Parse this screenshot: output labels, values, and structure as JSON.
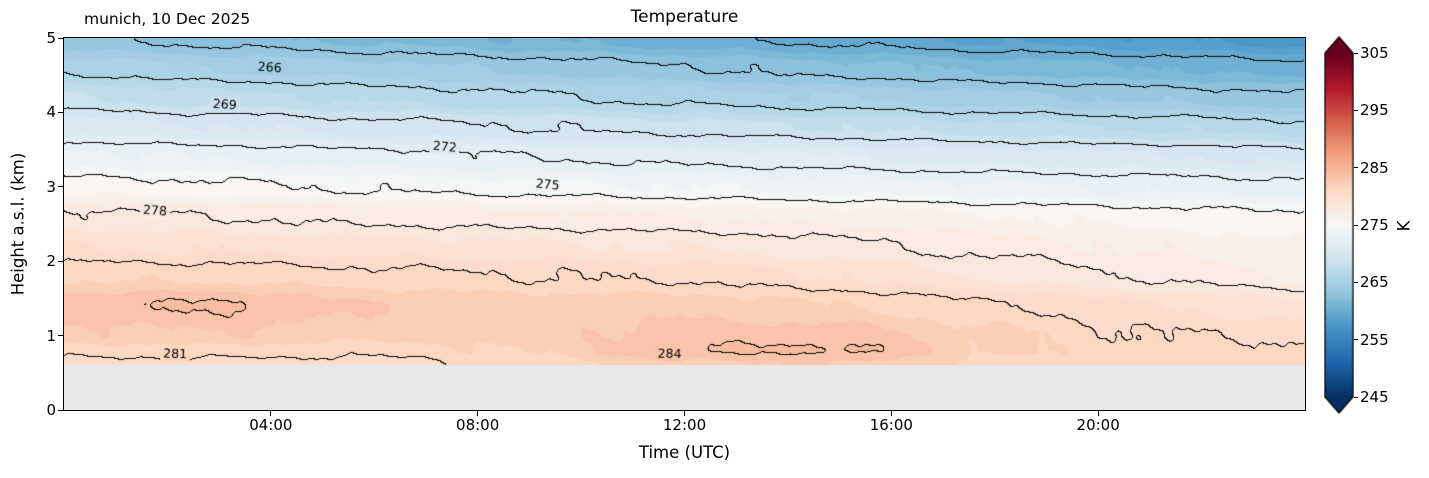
{
  "chart_data": {
    "type": "heatmap",
    "title": "Temperature",
    "annotation": "munich, 10 Dec 2025",
    "xlabel": "Time (UTC)",
    "ylabel": "Height a.s.l. (km)",
    "x_range_hours": [
      0,
      24
    ],
    "y_range_km": [
      0,
      5
    ],
    "x_ticks": [
      {
        "value": 4,
        "label": "04:00"
      },
      {
        "value": 8,
        "label": "08:00"
      },
      {
        "value": 12,
        "label": "12:00"
      },
      {
        "value": 16,
        "label": "16:00"
      },
      {
        "value": 20,
        "label": "20:00"
      }
    ],
    "y_ticks": [
      0,
      1,
      2,
      3,
      4,
      5
    ],
    "times_hours": [
      0,
      3,
      6,
      9,
      12,
      15,
      18,
      21,
      24
    ],
    "heights_km": [
      0.6,
      0.8,
      1.0,
      1.4,
      1.8,
      2.2,
      2.6,
      3.0,
      3.4,
      3.8,
      4.2,
      4.6,
      5.0
    ],
    "temperature_K": [
      [
        280.5,
        280.5,
        280.5,
        281.2,
        282.7,
        283.0,
        281.6,
        281.4,
        281.3
      ],
      [
        281.5,
        281.6,
        281.4,
        282.1,
        284.0,
        284.2,
        282.2,
        281.3,
        281.2
      ],
      [
        282.7,
        282.9,
        282.3,
        282.5,
        283.5,
        283.5,
        282.2,
        281.0,
        280.8
      ],
      [
        283.8,
        284.1,
        283.0,
        282.6,
        282.6,
        282.0,
        281.1,
        280.1,
        279.3
      ],
      [
        281.8,
        281.7,
        281.3,
        281.0,
        280.8,
        280.0,
        278.9,
        277.9,
        276.8
      ],
      [
        280.0,
        279.8,
        279.5,
        279.2,
        278.9,
        278.3,
        277.6,
        276.8,
        276.1
      ],
      [
        278.3,
        278.0,
        277.6,
        277.3,
        277.0,
        276.6,
        276.1,
        275.6,
        275.2
      ],
      [
        275.6,
        275.2,
        274.8,
        274.4,
        274.0,
        273.6,
        273.2,
        272.8,
        272.4
      ],
      [
        273.4,
        272.9,
        272.5,
        272.0,
        271.6,
        271.1,
        270.6,
        270.2,
        269.7
      ],
      [
        270.6,
        270.1,
        269.5,
        269.0,
        268.5,
        268.0,
        267.4,
        266.9,
        266.4
      ],
      [
        268.0,
        267.4,
        266.8,
        266.2,
        265.6,
        265.0,
        264.4,
        263.8,
        263.2
      ],
      [
        265.7,
        265.0,
        264.4,
        263.7,
        263.1,
        262.4,
        261.7,
        261.1,
        260.4
      ],
      [
        263.2,
        262.5,
        261.7,
        261.0,
        260.3,
        259.6,
        258.8,
        258.1,
        257.4
      ]
    ],
    "no_data_below_km": 0.6,
    "no_data_color": "#e8e8e8",
    "contour_interval_K": 3,
    "contour_base_K": 245,
    "fill_interval_K": 1,
    "contour_labels": [
      {
        "level": 266,
        "t": 3.98,
        "h": 4.6,
        "rot": 3
      },
      {
        "level": 269,
        "t": 3.11,
        "h": 4.1,
        "rot": 4
      },
      {
        "level": 272,
        "t": 7.37,
        "h": 3.53,
        "rot": 5
      },
      {
        "level": 275,
        "t": 9.36,
        "h": 3.02,
        "rot": 5
      },
      {
        "level": 278,
        "t": 1.76,
        "h": 2.67,
        "rot": 4
      },
      {
        "level": 281,
        "t": 2.15,
        "h": 0.74,
        "rot": 2
      },
      {
        "level": 284,
        "t": 11.72,
        "h": 0.74,
        "rot": 1
      }
    ],
    "colormap": {
      "name": "RdBu_r",
      "vmin": 245,
      "vmax": 305,
      "anchors": [
        "#053061",
        "#2166ac",
        "#4393c6",
        "#92c5de",
        "#d1e5f0",
        "#f7f7f7",
        "#fddbc7",
        "#f4a582",
        "#d6604d",
        "#b2182b",
        "#67001f"
      ]
    },
    "colorbar": {
      "label": "K",
      "ticks": [
        245,
        255,
        265,
        275,
        285,
        295,
        305
      ],
      "extend": "both"
    }
  }
}
